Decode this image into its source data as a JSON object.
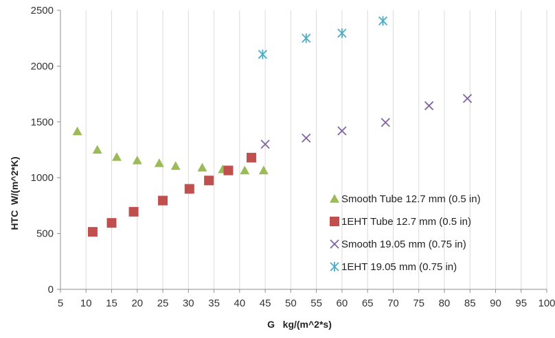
{
  "chart_data": {
    "type": "scatter",
    "title": "",
    "xlabel": "G   kg/(m^2*s)",
    "ylabel": "HTC  W/(m^2*K)",
    "xlim": [
      5,
      100
    ],
    "ylim": [
      0,
      2500
    ],
    "xticks": [
      5,
      10,
      15,
      20,
      25,
      30,
      35,
      40,
      45,
      50,
      55,
      60,
      65,
      70,
      75,
      80,
      85,
      90,
      95,
      100
    ],
    "yticks": [
      0,
      500,
      1000,
      1500,
      2000,
      2500
    ],
    "grid": "vertical",
    "legend_position": "bottom-right",
    "series": [
      {
        "name": "Smooth Tube  12.7 mm (0.5 in)",
        "marker": "triangle",
        "color": "#9bbb59",
        "points": [
          [
            8.3,
            1415
          ],
          [
            12.2,
            1250
          ],
          [
            16.0,
            1185
          ],
          [
            20.0,
            1155
          ],
          [
            24.3,
            1130
          ],
          [
            27.5,
            1105
          ],
          [
            32.7,
            1090
          ],
          [
            36.7,
            1075
          ],
          [
            41.0,
            1065
          ],
          [
            44.7,
            1065
          ]
        ]
      },
      {
        "name": "1EHT Tube  12.7 mm (0.5 in)",
        "marker": "square",
        "color": "#c0504d",
        "points": [
          [
            11.3,
            515
          ],
          [
            15.0,
            595
          ],
          [
            19.3,
            695
          ],
          [
            25.0,
            795
          ],
          [
            30.2,
            900
          ],
          [
            34.0,
            975
          ],
          [
            37.8,
            1065
          ],
          [
            42.3,
            1180
          ]
        ]
      },
      {
        "name": "Smooth   19.05 mm (0.75 in)",
        "marker": "x",
        "color": "#8064a2",
        "points": [
          [
            45.0,
            1300
          ],
          [
            53.0,
            1355
          ],
          [
            60.0,
            1420
          ],
          [
            68.5,
            1495
          ],
          [
            77.0,
            1645
          ],
          [
            84.5,
            1710
          ]
        ]
      },
      {
        "name": "1EHT  19.05 mm (0.75 in)",
        "marker": "asterisk",
        "color": "#4bacc6",
        "points": [
          [
            44.5,
            2105
          ],
          [
            53.0,
            2250
          ],
          [
            60.0,
            2295
          ],
          [
            68.0,
            2405
          ]
        ]
      }
    ]
  }
}
